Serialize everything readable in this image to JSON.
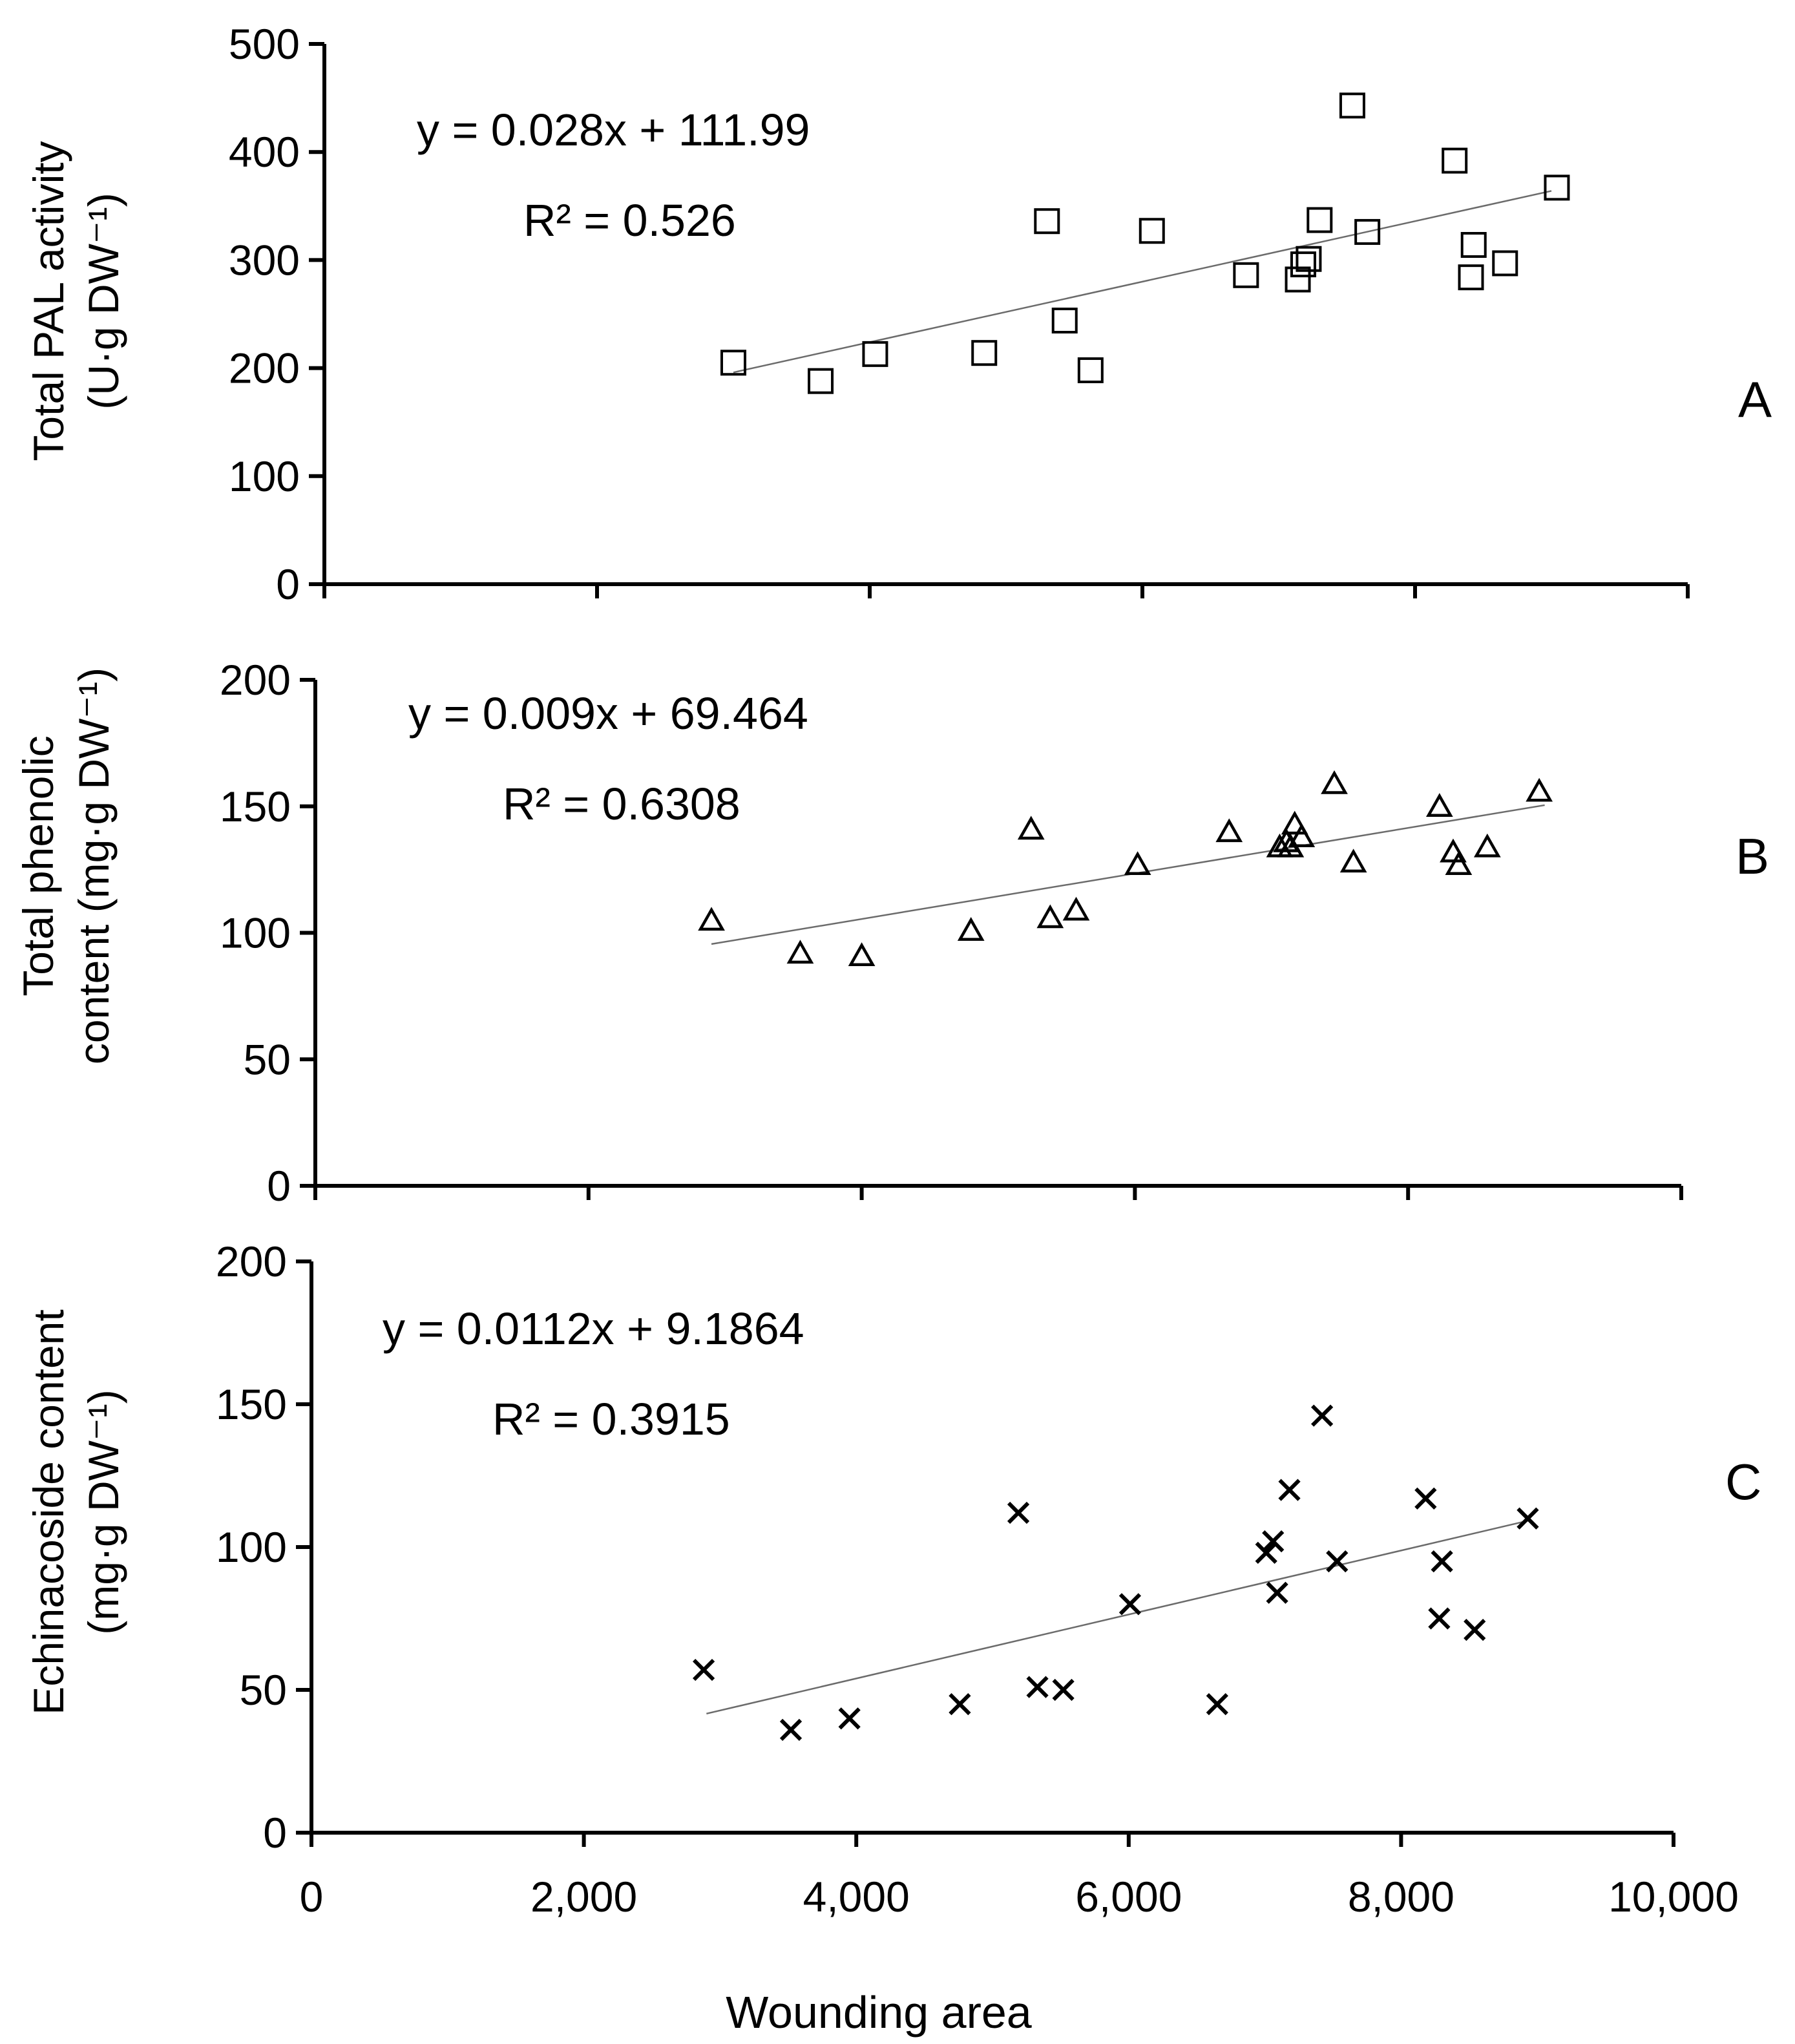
{
  "chart_data": [
    {
      "type": "scatter",
      "panel_label": "A",
      "ylabel_lines": [
        "Total PAL activity",
        "(U·g DW⁻¹)"
      ],
      "ylim": [
        0,
        500
      ],
      "yticks": [
        0,
        100,
        200,
        300,
        400,
        500
      ],
      "ytick_labels": [
        "0",
        "100",
        "200",
        "300",
        "400",
        "500"
      ],
      "xlim": [
        0,
        10000
      ],
      "marker": "square",
      "equation": "y = 0.028x + 111.99",
      "r2": "R² = 0.526",
      "trendline": {
        "slope": 0.028,
        "intercept": 111.99,
        "x_start": 3000,
        "x_end": 9000
      },
      "points": [
        [
          3000,
          205
        ],
        [
          3640,
          188
        ],
        [
          4040,
          213
        ],
        [
          4840,
          214
        ],
        [
          5300,
          336
        ],
        [
          5430,
          244
        ],
        [
          5620,
          198
        ],
        [
          6070,
          327
        ],
        [
          6760,
          286
        ],
        [
          7140,
          282
        ],
        [
          7180,
          296
        ],
        [
          7220,
          301
        ],
        [
          7300,
          337
        ],
        [
          7540,
          443
        ],
        [
          7650,
          326
        ],
        [
          8290,
          392
        ],
        [
          8410,
          284
        ],
        [
          8430,
          314
        ],
        [
          8660,
          297
        ],
        [
          9040,
          367
        ]
      ]
    },
    {
      "type": "scatter",
      "panel_label": "B",
      "ylabel_lines": [
        "Total phenolic",
        "content (mg·g DW⁻¹)"
      ],
      "ylim": [
        0,
        200
      ],
      "yticks": [
        0,
        50,
        100,
        150,
        200
      ],
      "ytick_labels": [
        "0",
        "50",
        "100",
        "150",
        "200"
      ],
      "xlim": [
        0,
        10000
      ],
      "marker": "triangle",
      "equation": "y = 0.009x + 69.464",
      "r2": "R² = 0.6308",
      "trendline": {
        "slope": 0.009,
        "intercept": 69.464,
        "x_start": 2900,
        "x_end": 9000
      },
      "points": [
        [
          2900,
          105
        ],
        [
          3550,
          92
        ],
        [
          4000,
          91
        ],
        [
          4800,
          101
        ],
        [
          5240,
          141
        ],
        [
          5380,
          106
        ],
        [
          5570,
          109
        ],
        [
          6020,
          127
        ],
        [
          6690,
          140
        ],
        [
          7060,
          134
        ],
        [
          7110,
          136
        ],
        [
          7140,
          134
        ],
        [
          7170,
          143
        ],
        [
          7220,
          138
        ],
        [
          7460,
          159
        ],
        [
          7600,
          128
        ],
        [
          8230,
          150
        ],
        [
          8330,
          132
        ],
        [
          8370,
          127
        ],
        [
          8580,
          134
        ],
        [
          8960,
          156
        ]
      ]
    },
    {
      "type": "scatter",
      "panel_label": "C",
      "ylabel_lines": [
        "Echinacoside content",
        "(mg·g DW⁻¹)"
      ],
      "ylim": [
        0,
        200
      ],
      "yticks": [
        0,
        50,
        100,
        150,
        200
      ],
      "ytick_labels": [
        "0",
        "50",
        "100",
        "150",
        "200"
      ],
      "xlim": [
        0,
        10000
      ],
      "xticks": [
        0,
        2000,
        4000,
        6000,
        8000,
        10000
      ],
      "xtick_labels": [
        "0",
        "2,000",
        "4,000",
        "6,000",
        "8,000",
        "10,000"
      ],
      "xlabel": "Wounding area",
      "marker": "x",
      "equation": "y = 0.0112x + 9.1864",
      "r2": "R² = 0.3915",
      "trendline": {
        "slope": 0.0112,
        "intercept": 9.1864,
        "x_start": 2900,
        "x_end": 8950
      },
      "points": [
        [
          2880,
          57
        ],
        [
          3520,
          36
        ],
        [
          3950,
          40
        ],
        [
          4760,
          45
        ],
        [
          5190,
          112
        ],
        [
          5330,
          51
        ],
        [
          5520,
          50
        ],
        [
          6010,
          80
        ],
        [
          6650,
          45
        ],
        [
          7010,
          98
        ],
        [
          7060,
          102
        ],
        [
          7090,
          84
        ],
        [
          7180,
          120
        ],
        [
          7420,
          146
        ],
        [
          7530,
          95
        ],
        [
          8180,
          117
        ],
        [
          8280,
          75
        ],
        [
          8300,
          95
        ],
        [
          8540,
          71
        ],
        [
          8930,
          110
        ]
      ]
    }
  ]
}
